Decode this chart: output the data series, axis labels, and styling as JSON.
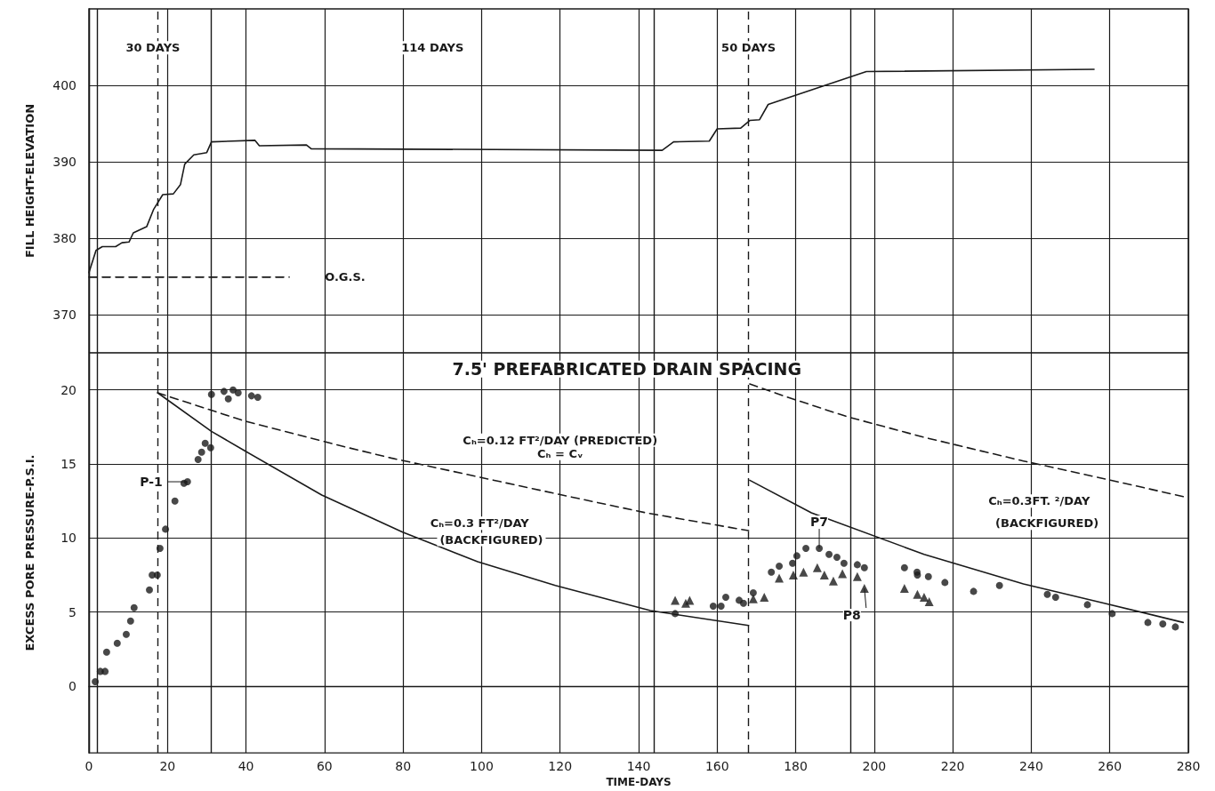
{
  "chart_data": [
    {
      "type": "line",
      "ylabel": "FILL HEIGHT-ELEVATION",
      "xlim": [
        0,
        280
      ],
      "xticks": [
        0,
        20,
        40,
        60,
        80,
        100,
        120,
        140,
        160,
        180,
        200,
        220,
        240,
        260,
        280
      ],
      "ylim": [
        365,
        410
      ],
      "yticks": [
        370,
        380,
        390,
        400
      ],
      "grid": true,
      "tick_labels": "y",
      "annotations": [
        "30 DAYS",
        "114 DAYS",
        "50 DAYS"
      ],
      "ref_lines": [
        {
          "axis": "x",
          "value": 2,
          "line_style": "solid"
        },
        {
          "axis": "x",
          "value": 17.5,
          "line_style": "dashed"
        },
        {
          "axis": "x",
          "value": 31,
          "line_style": "solid"
        },
        {
          "axis": "x",
          "value": 144,
          "line_style": "solid"
        },
        {
          "axis": "x",
          "value": 168,
          "line_style": "dashed"
        },
        {
          "axis": "x",
          "value": 194,
          "line_style": "solid"
        }
      ],
      "series": [
        {
          "type": "line",
          "color": "#1a1a1a",
          "marker": "none",
          "line_style": "solid",
          "x": [
            0,
            1.8,
            3.4,
            6.8,
            8.4,
            10.2,
            11.3,
            14.7,
            16.5,
            18.8,
            21.5,
            23.3,
            24.4,
            26.7,
            30,
            31.2,
            42.3,
            43.4,
            55.4,
            56.6,
            146,
            148.9,
            158,
            160,
            166,
            168.3,
            170.8,
            173,
            198,
            256
          ],
          "values": [
            375.5,
            378.4,
            378.9,
            378.9,
            379.4,
            379.5,
            380.7,
            381.5,
            383.8,
            385.7,
            385.8,
            387,
            389.7,
            390.9,
            391.2,
            392.6,
            392.8,
            392.1,
            392.2,
            391.7,
            391.5,
            392.6,
            392.7,
            394.3,
            394.4,
            395.4,
            395.5,
            397.5,
            401.8,
            402.1
          ]
        },
        {
          "type": "line",
          "name": "O.G.S.",
          "color": "#1a1a1a",
          "marker": "none",
          "line_style": "dashed",
          "x": [
            0,
            51
          ],
          "values": [
            374.9,
            374.9
          ]
        }
      ]
    },
    {
      "type": "line",
      "title": "7.5' PREFABRICATED DRAIN SPACING",
      "xlabel": "TIME-DAYS",
      "ylabel": "EXCESS PORE PRESSURE-P.S.I.",
      "xlim": [
        0,
        280
      ],
      "xticks": [
        0,
        20,
        40,
        60,
        80,
        100,
        120,
        140,
        160,
        180,
        200,
        220,
        240,
        260,
        280
      ],
      "ylim": [
        -4.5,
        22.5
      ],
      "yticks": [
        0,
        5,
        10,
        15,
        20
      ],
      "grid": true,
      "annotations": [
        "Cₕ=0.12 FT²/DAY (PREDICTED)",
        "Cₕ = Cᵥ",
        "Cₕ=0.3 FT²/DAY",
        "(BACKFIGURED)",
        "Cₕ=0.3FT. ²/DAY",
        "(BACKFIGURED)",
        {
          "text": "P-1",
          "x": 25.1,
          "y": 13.8
        },
        {
          "text": "P7",
          "x": 186,
          "y": 9.3
        },
        {
          "text": "P8",
          "x": 197.5,
          "y": 6.6
        }
      ],
      "ref_lines": [
        {
          "axis": "x",
          "value": 2,
          "line_style": "solid"
        },
        {
          "axis": "x",
          "value": 17.5,
          "line_style": "dashed"
        },
        {
          "axis": "x",
          "value": 31,
          "line_style": "solid"
        },
        {
          "axis": "x",
          "value": 144,
          "line_style": "solid"
        },
        {
          "axis": "x",
          "value": 168,
          "line_style": "dashed"
        },
        {
          "axis": "x",
          "value": 194,
          "line_style": "solid"
        }
      ],
      "series": [
        {
          "type": "line",
          "color": "#1a1a1a",
          "marker": "none",
          "line_style": "dashed",
          "x": [
            17.5,
            39.6,
            64.5,
            77,
            118.8,
            141.9,
            168
          ],
          "values": [
            19.8,
            17.9,
            16.2,
            15.4,
            13.0,
            11.7,
            10.5
          ]
        },
        {
          "type": "line",
          "color": "#1a1a1a",
          "marker": "none",
          "line_style": "solid",
          "x": [
            17.5,
            31.2,
            39.6,
            59.3,
            79.9,
            99,
            118.8,
            143,
            168
          ],
          "values": [
            19.8,
            17.2,
            15.9,
            12.9,
            10.4,
            8.4,
            6.8,
            5.1,
            4.1
          ]
        },
        {
          "type": "line",
          "color": "#1a1a1a",
          "marker": "none",
          "line_style": "dashed",
          "x": [
            168.3,
            178,
            193,
            212.7,
            238,
            258.6,
            278.7
          ],
          "values": [
            20.4,
            19.5,
            18.2,
            16.8,
            15.2,
            14.0,
            12.8
          ]
        },
        {
          "type": "line",
          "color": "#1a1a1a",
          "marker": "none",
          "line_style": "solid",
          "x": [
            168.3,
            184,
            212.7,
            238,
            258.6,
            278.7
          ],
          "values": [
            13.9,
            11.7,
            8.9,
            6.9,
            5.6,
            4.3
          ]
        },
        {
          "type": "scatter",
          "color": "#1a1a1a",
          "marker": "circle",
          "x": [
            1.6,
            2.9,
            4.1,
            4.5,
            7.2,
            9.5,
            10.6,
            11.5,
            15.4,
            16.1,
            17.4,
            18.1,
            19.5,
            21.9,
            24.2,
            25.1,
            27.8,
            28.7,
            29.6,
            31,
            31.2,
            34.4,
            35.5,
            36.7,
            38,
            41.4,
            43,
            149.3,
            152,
            159,
            161,
            162.2,
            165.6,
            166.7,
            169.2,
            173.8,
            175.8,
            179.2,
            180.3,
            182.6,
            186,
            188.5,
            190.5,
            192.3,
            195.7,
            197.5,
            207.7,
            210.9,
            211,
            213.8,
            218,
            225.3,
            231.9,
            244.1,
            246.2,
            254.3,
            260.6,
            269.7,
            273.5,
            276.7
          ],
          "values": [
            0.3,
            1.0,
            1.0,
            2.3,
            2.9,
            3.5,
            4.4,
            5.3,
            6.5,
            7.5,
            7.5,
            9.3,
            10.6,
            12.5,
            13.7,
            13.8,
            15.3,
            15.8,
            16.4,
            16.1,
            19.7,
            19.9,
            19.4,
            20.0,
            19.8,
            19.6,
            19.5,
            4.9,
            null,
            5.4,
            5.4,
            6.0,
            5.8,
            5.6,
            6.3,
            7.7,
            8.1,
            8.3,
            8.8,
            9.3,
            9.3,
            8.9,
            8.7,
            8.3,
            8.2,
            8.0,
            8.0,
            7.7,
            7.5,
            7.4,
            7.0,
            6.4,
            6.8,
            6.2,
            6.0,
            5.5,
            4.9,
            4.3,
            4.2,
            4.0
          ]
        },
        {
          "type": "scatter",
          "color": "#1a1a1a",
          "marker": "triangle",
          "x": [
            149.3,
            152,
            153,
            169.2,
            172,
            175.8,
            179.4,
            182,
            185.5,
            187.3,
            189.6,
            191.9,
            195.7,
            197.5,
            207.7,
            211,
            212.7,
            214
          ],
          "values": [
            5.8,
            5.6,
            5.8,
            5.9,
            6.0,
            7.3,
            7.5,
            7.7,
            8.0,
            7.5,
            7.1,
            7.6,
            7.4,
            6.6,
            6.6,
            6.2,
            6.0,
            5.7
          ]
        }
      ]
    }
  ]
}
